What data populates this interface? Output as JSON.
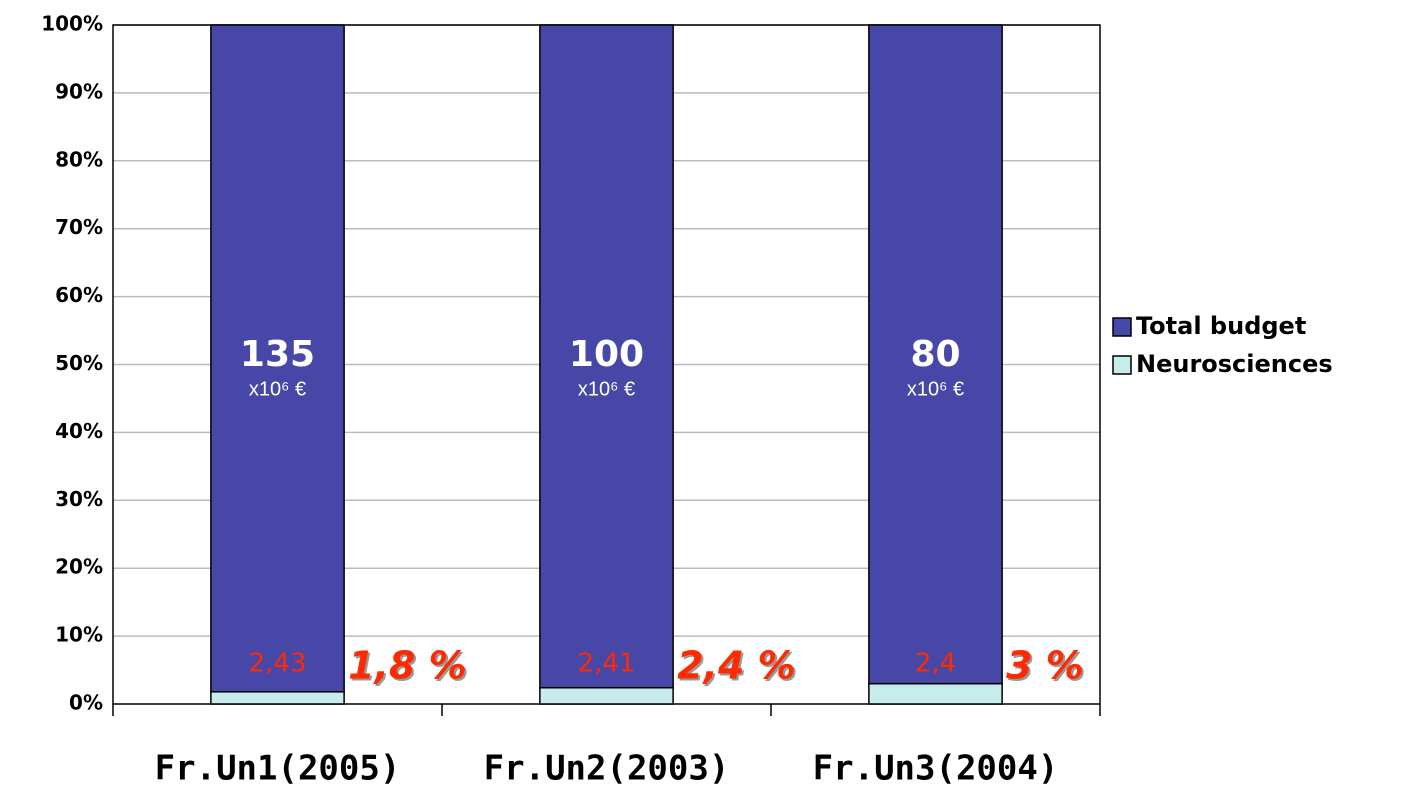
{
  "chart_data": {
    "type": "stacked_bar_100",
    "categories": [
      "Fr.Un1(2005)",
      "Fr.Un2(2003)",
      "Fr.Un3(2004)"
    ],
    "series": [
      {
        "name": "Total budget",
        "color": "#4747a8",
        "values": [
          98.2,
          97.6,
          97
        ]
      },
      {
        "name": "Neurosciences",
        "color": "#c6ecec",
        "values": [
          1.8,
          2.4,
          3
        ],
        "value_labels": [
          "1,8 %",
          "2,4 %",
          "3 %"
        ]
      }
    ],
    "budget_labels": [
      "135",
      "100",
      "80"
    ],
    "budget_unit": "x10⁶ €",
    "neuro_amounts": [
      "2,43",
      "2,41",
      "2,4"
    ],
    "ylim": [
      0,
      100
    ],
    "yticks": [
      {
        "value": 0,
        "label": "0%"
      },
      {
        "value": 10,
        "label": "10%"
      },
      {
        "value": 20,
        "label": "20%"
      },
      {
        "value": 30,
        "label": "30%"
      },
      {
        "value": 40,
        "label": "40%"
      },
      {
        "value": 50,
        "label": "50%"
      },
      {
        "value": 60,
        "label": "60%"
      },
      {
        "value": 70,
        "label": "70%"
      },
      {
        "value": 80,
        "label": "80%"
      },
      {
        "value": 90,
        "label": "90%"
      },
      {
        "value": 100,
        "label": "100%"
      }
    ],
    "grid": true,
    "legend": "right"
  }
}
